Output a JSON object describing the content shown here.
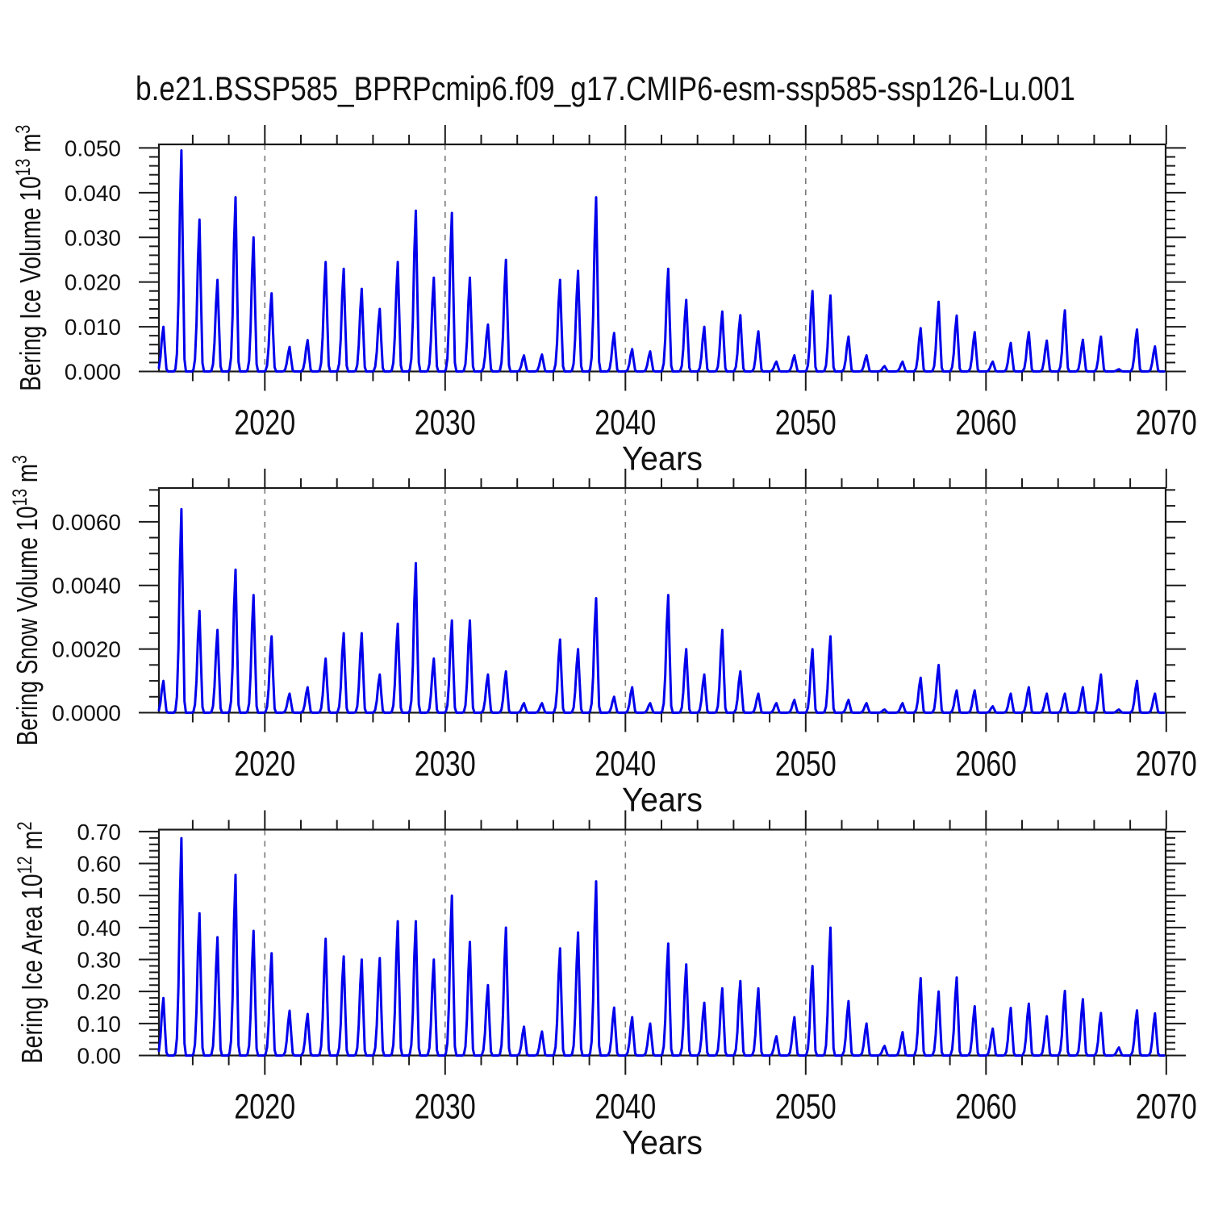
{
  "title": "b.e21.BSSP585_BPRPcmip6.f09_g17.CMIP6-esm-ssp585-ssp126-Lu.001",
  "xlabel": "Years",
  "x_tick_labels": [
    "2020",
    "2030",
    "2040",
    "2050",
    "2060",
    "2070"
  ],
  "grid_years": [
    2020,
    2030,
    2040,
    2050,
    2060
  ],
  "colors": {
    "line": "#0000EB",
    "axis": "#1a1a1a",
    "gridline": "#7a7a7a",
    "background": "#ffffff",
    "text": "#111111"
  },
  "chart_data": [
    {
      "type": "line",
      "name": "bering-ice-volume",
      "ylabel": "Bering Ice Volume 10^13 m^3",
      "ylabel_parts": [
        [
          "t",
          "Bering Ice Volume 10"
        ],
        [
          "s",
          "13"
        ],
        [
          "t",
          " m"
        ],
        [
          "s",
          "3"
        ]
      ],
      "y_tick_labels": [
        "0.000",
        "0.010",
        "0.020",
        "0.030",
        "0.040",
        "0.050"
      ],
      "y_minor_step": 0.002,
      "ylim": [
        0,
        0.0508
      ],
      "xlim": [
        2014.125,
        2069.958
      ],
      "x_years_start": 2014,
      "annual_peak_values": [
        0.01,
        0.0495,
        0.034,
        0.0205,
        0.039,
        0.03,
        0.0175,
        0.0055,
        0.007,
        0.0245,
        0.023,
        0.0185,
        0.014,
        0.0245,
        0.036,
        0.021,
        0.0355,
        0.021,
        0.0105,
        0.025,
        0.0036,
        0.0038,
        0.0205,
        0.0225,
        0.039,
        0.0086,
        0.005,
        0.0045,
        0.023,
        0.016,
        0.01,
        0.0134,
        0.0126,
        0.009,
        0.0022,
        0.0036,
        0.018,
        0.017,
        0.0078,
        0.0036,
        0.0012,
        0.0022,
        0.0097,
        0.0156,
        0.0125,
        0.0088,
        0.0022,
        0.0064,
        0.0088,
        0.0069,
        0.0137,
        0.0071,
        0.0078,
        0.0005,
        0.0094,
        0.0056
      ]
    },
    {
      "type": "line",
      "name": "bering-snow-volume",
      "ylabel": "Bering Snow Volume 10^13 m^3",
      "ylabel_parts": [
        [
          "t",
          "Bering Snow Volume 10"
        ],
        [
          "s",
          "13"
        ],
        [
          "t",
          " m"
        ],
        [
          "s",
          "3"
        ]
      ],
      "y_tick_labels": [
        "0.0000",
        "0.0020",
        "0.0040",
        "0.0060"
      ],
      "y_minor_step": 0.0005,
      "ylim": [
        0,
        0.00706
      ],
      "xlim": [
        2014.125,
        2069.958
      ],
      "x_years_start": 2014,
      "annual_peak_values": [
        0.001,
        0.0064,
        0.0032,
        0.0026,
        0.0045,
        0.0037,
        0.0024,
        0.0006,
        0.0008,
        0.0017,
        0.0025,
        0.0025,
        0.0012,
        0.0028,
        0.0047,
        0.0017,
        0.0029,
        0.0029,
        0.0012,
        0.0013,
        0.0003,
        0.0003,
        0.0023,
        0.002,
        0.0036,
        0.0005,
        0.0008,
        0.0003,
        0.0037,
        0.002,
        0.0012,
        0.0026,
        0.0013,
        0.0006,
        0.0003,
        0.0004,
        0.002,
        0.0024,
        0.0004,
        0.0003,
        0.0001,
        0.0003,
        0.0011,
        0.0015,
        0.0007,
        0.0007,
        0.0002,
        0.0006,
        0.0008,
        0.0006,
        0.0006,
        0.0008,
        0.0012,
        0.0001,
        0.001,
        0.0006
      ]
    },
    {
      "type": "line",
      "name": "bering-ice-area",
      "ylabel": "Bering Ice Area 10^12 m^2",
      "ylabel_parts": [
        [
          "t",
          "Bering Ice Area 10"
        ],
        [
          "s",
          "12"
        ],
        [
          "t",
          " m"
        ],
        [
          "s",
          "2"
        ]
      ],
      "y_tick_labels": [
        "0.00",
        "0.10",
        "0.20",
        "0.30",
        "0.40",
        "0.50",
        "0.60",
        "0.70"
      ],
      "y_minor_step": 0.02,
      "ylim": [
        0,
        0.706
      ],
      "xlim": [
        2014.125,
        2069.958
      ],
      "x_years_start": 2014,
      "annual_peak_values": [
        0.18,
        0.68,
        0.445,
        0.37,
        0.565,
        0.39,
        0.32,
        0.14,
        0.13,
        0.365,
        0.31,
        0.3,
        0.305,
        0.42,
        0.42,
        0.3,
        0.5,
        0.355,
        0.22,
        0.4,
        0.09,
        0.075,
        0.335,
        0.385,
        0.545,
        0.15,
        0.12,
        0.1,
        0.35,
        0.285,
        0.165,
        0.21,
        0.233,
        0.21,
        0.06,
        0.12,
        0.28,
        0.4,
        0.17,
        0.1,
        0.03,
        0.073,
        0.242,
        0.2,
        0.244,
        0.154,
        0.084,
        0.149,
        0.162,
        0.123,
        0.202,
        0.176,
        0.133,
        0.025,
        0.141,
        0.132
      ]
    }
  ]
}
